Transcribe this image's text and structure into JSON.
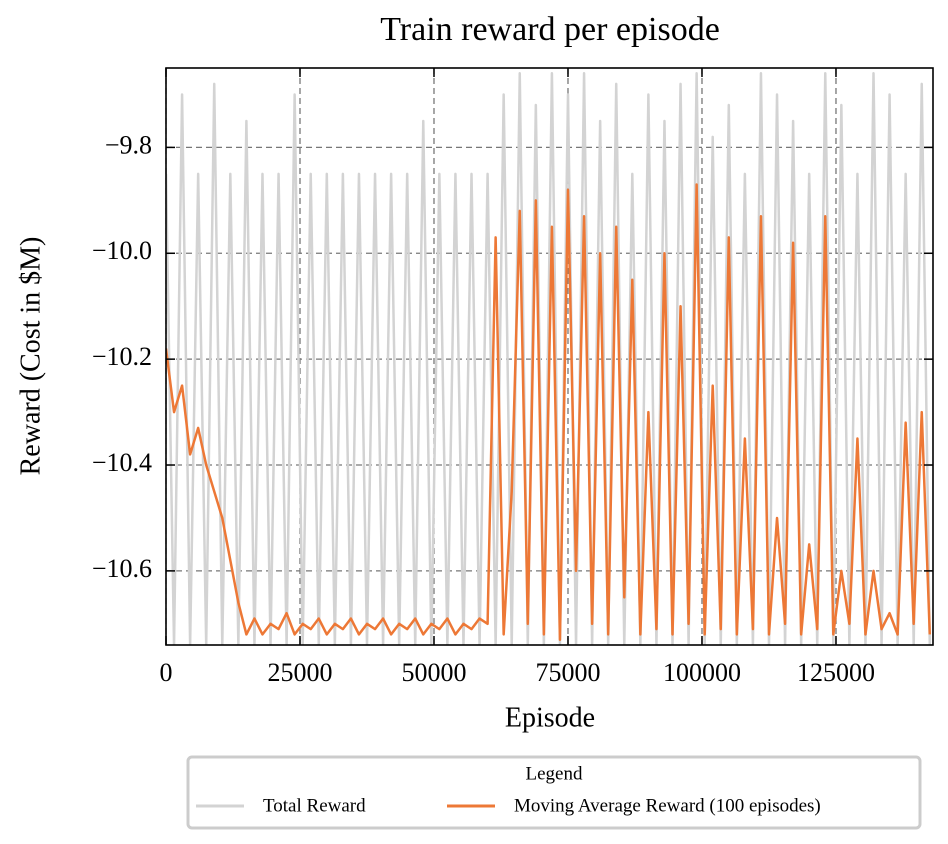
{
  "chart_data": {
    "type": "line",
    "title": "Train reward per episode",
    "x_label": "Episode",
    "y_label": "Reward (Cost in $M)",
    "x": [
      0,
      1500,
      3000,
      4500,
      6000,
      7500,
      9000,
      10500,
      12000,
      13500,
      15000,
      16500,
      18000,
      19500,
      21000,
      22500,
      24000,
      25500,
      27000,
      28500,
      30000,
      31500,
      33000,
      34500,
      36000,
      37500,
      39000,
      40500,
      42000,
      43500,
      45000,
      46500,
      48000,
      49500,
      51000,
      52500,
      54000,
      55500,
      57000,
      58500,
      60000,
      61500,
      63000,
      64500,
      66000,
      67500,
      69000,
      70500,
      72000,
      73500,
      75000,
      76500,
      78000,
      79500,
      81000,
      82500,
      84000,
      85500,
      87000,
      88500,
      90000,
      91500,
      93000,
      94500,
      96000,
      97500,
      99000,
      100500,
      102000,
      103500,
      105000,
      106500,
      108000,
      109500,
      111000,
      112500,
      114000,
      115500,
      117000,
      118500,
      120000,
      121500,
      123000,
      124500,
      126000,
      127500,
      129000,
      130500,
      132000,
      133500,
      135000,
      136500,
      138000,
      139500,
      141000,
      142500
    ],
    "series": [
      {
        "name": "Total Reward",
        "color": "#d3d3d3",
        "values": [
          -9.85,
          -10.74,
          -9.7,
          -10.74,
          -9.85,
          -10.74,
          -9.68,
          -10.74,
          -9.85,
          -10.74,
          -9.75,
          -10.74,
          -9.85,
          -10.74,
          -9.85,
          -10.74,
          -9.7,
          -10.74,
          -9.85,
          -10.74,
          -9.85,
          -10.74,
          -9.85,
          -10.74,
          -9.85,
          -10.74,
          -9.85,
          -10.74,
          -9.85,
          -10.74,
          -9.85,
          -10.74,
          -9.75,
          -10.74,
          -9.85,
          -10.74,
          -9.85,
          -10.74,
          -9.85,
          -10.74,
          -9.85,
          -10.74,
          -9.7,
          -10.74,
          -9.66,
          -10.74,
          -9.72,
          -10.74,
          -9.66,
          -10.74,
          -9.7,
          -10.74,
          -9.66,
          -10.74,
          -9.75,
          -10.74,
          -9.68,
          -10.74,
          -9.85,
          -10.74,
          -9.7,
          -10.74,
          -9.75,
          -10.74,
          -9.68,
          -10.74,
          -9.66,
          -10.74,
          -9.78,
          -10.74,
          -9.72,
          -10.74,
          -9.85,
          -10.74,
          -9.66,
          -10.74,
          -9.7,
          -10.74,
          -9.75,
          -10.74,
          -9.85,
          -10.74,
          -9.66,
          -10.74,
          -9.72,
          -10.74,
          -9.85,
          -10.74,
          -9.66,
          -10.74,
          -9.7,
          -10.74,
          -9.85,
          -10.74,
          -9.68,
          -10.74
        ]
      },
      {
        "name": "Moving Average Reward (100 episodes)",
        "color": "#ed7836",
        "values": [
          -10.18,
          -10.3,
          -10.25,
          -10.38,
          -10.33,
          -10.4,
          -10.45,
          -10.5,
          -10.58,
          -10.66,
          -10.72,
          -10.69,
          -10.72,
          -10.7,
          -10.71,
          -10.68,
          -10.72,
          -10.7,
          -10.71,
          -10.69,
          -10.72,
          -10.7,
          -10.71,
          -10.69,
          -10.72,
          -10.7,
          -10.71,
          -10.69,
          -10.72,
          -10.7,
          -10.71,
          -10.69,
          -10.72,
          -10.7,
          -10.71,
          -10.69,
          -10.72,
          -10.7,
          -10.71,
          -10.69,
          -10.7,
          -9.97,
          -10.72,
          -10.45,
          -9.92,
          -10.7,
          -9.9,
          -10.72,
          -9.95,
          -10.73,
          -9.88,
          -10.6,
          -9.93,
          -10.7,
          -10.0,
          -10.72,
          -9.95,
          -10.65,
          -10.05,
          -10.72,
          -10.3,
          -10.71,
          -10.0,
          -10.72,
          -10.1,
          -10.7,
          -9.87,
          -10.72,
          -10.25,
          -10.71,
          -9.97,
          -10.72,
          -10.35,
          -10.71,
          -9.93,
          -10.72,
          -10.5,
          -10.7,
          -9.98,
          -10.72,
          -10.55,
          -10.71,
          -9.93,
          -10.72,
          -10.6,
          -10.7,
          -10.35,
          -10.72,
          -10.6,
          -10.71,
          -10.68,
          -10.72,
          -10.32,
          -10.7,
          -10.3,
          -10.72
        ]
      }
    ],
    "xlim": [
      0,
      143100
    ],
    "ylim": [
      -10.74,
      -9.65
    ],
    "xticks": [
      0,
      25000,
      50000,
      75000,
      100000,
      125000
    ],
    "yticks": [
      {
        "value": -10.6,
        "label": "−10.6"
      },
      {
        "value": -10.4,
        "label": "−10.4"
      },
      {
        "value": -10.2,
        "label": "−10.2"
      },
      {
        "value": -10.0,
        "label": "−10.0"
      },
      {
        "value": -9.8,
        "label": "−9.8"
      }
    ],
    "grid": true,
    "legend": {
      "title": "Legend",
      "loc": "lower center"
    }
  }
}
